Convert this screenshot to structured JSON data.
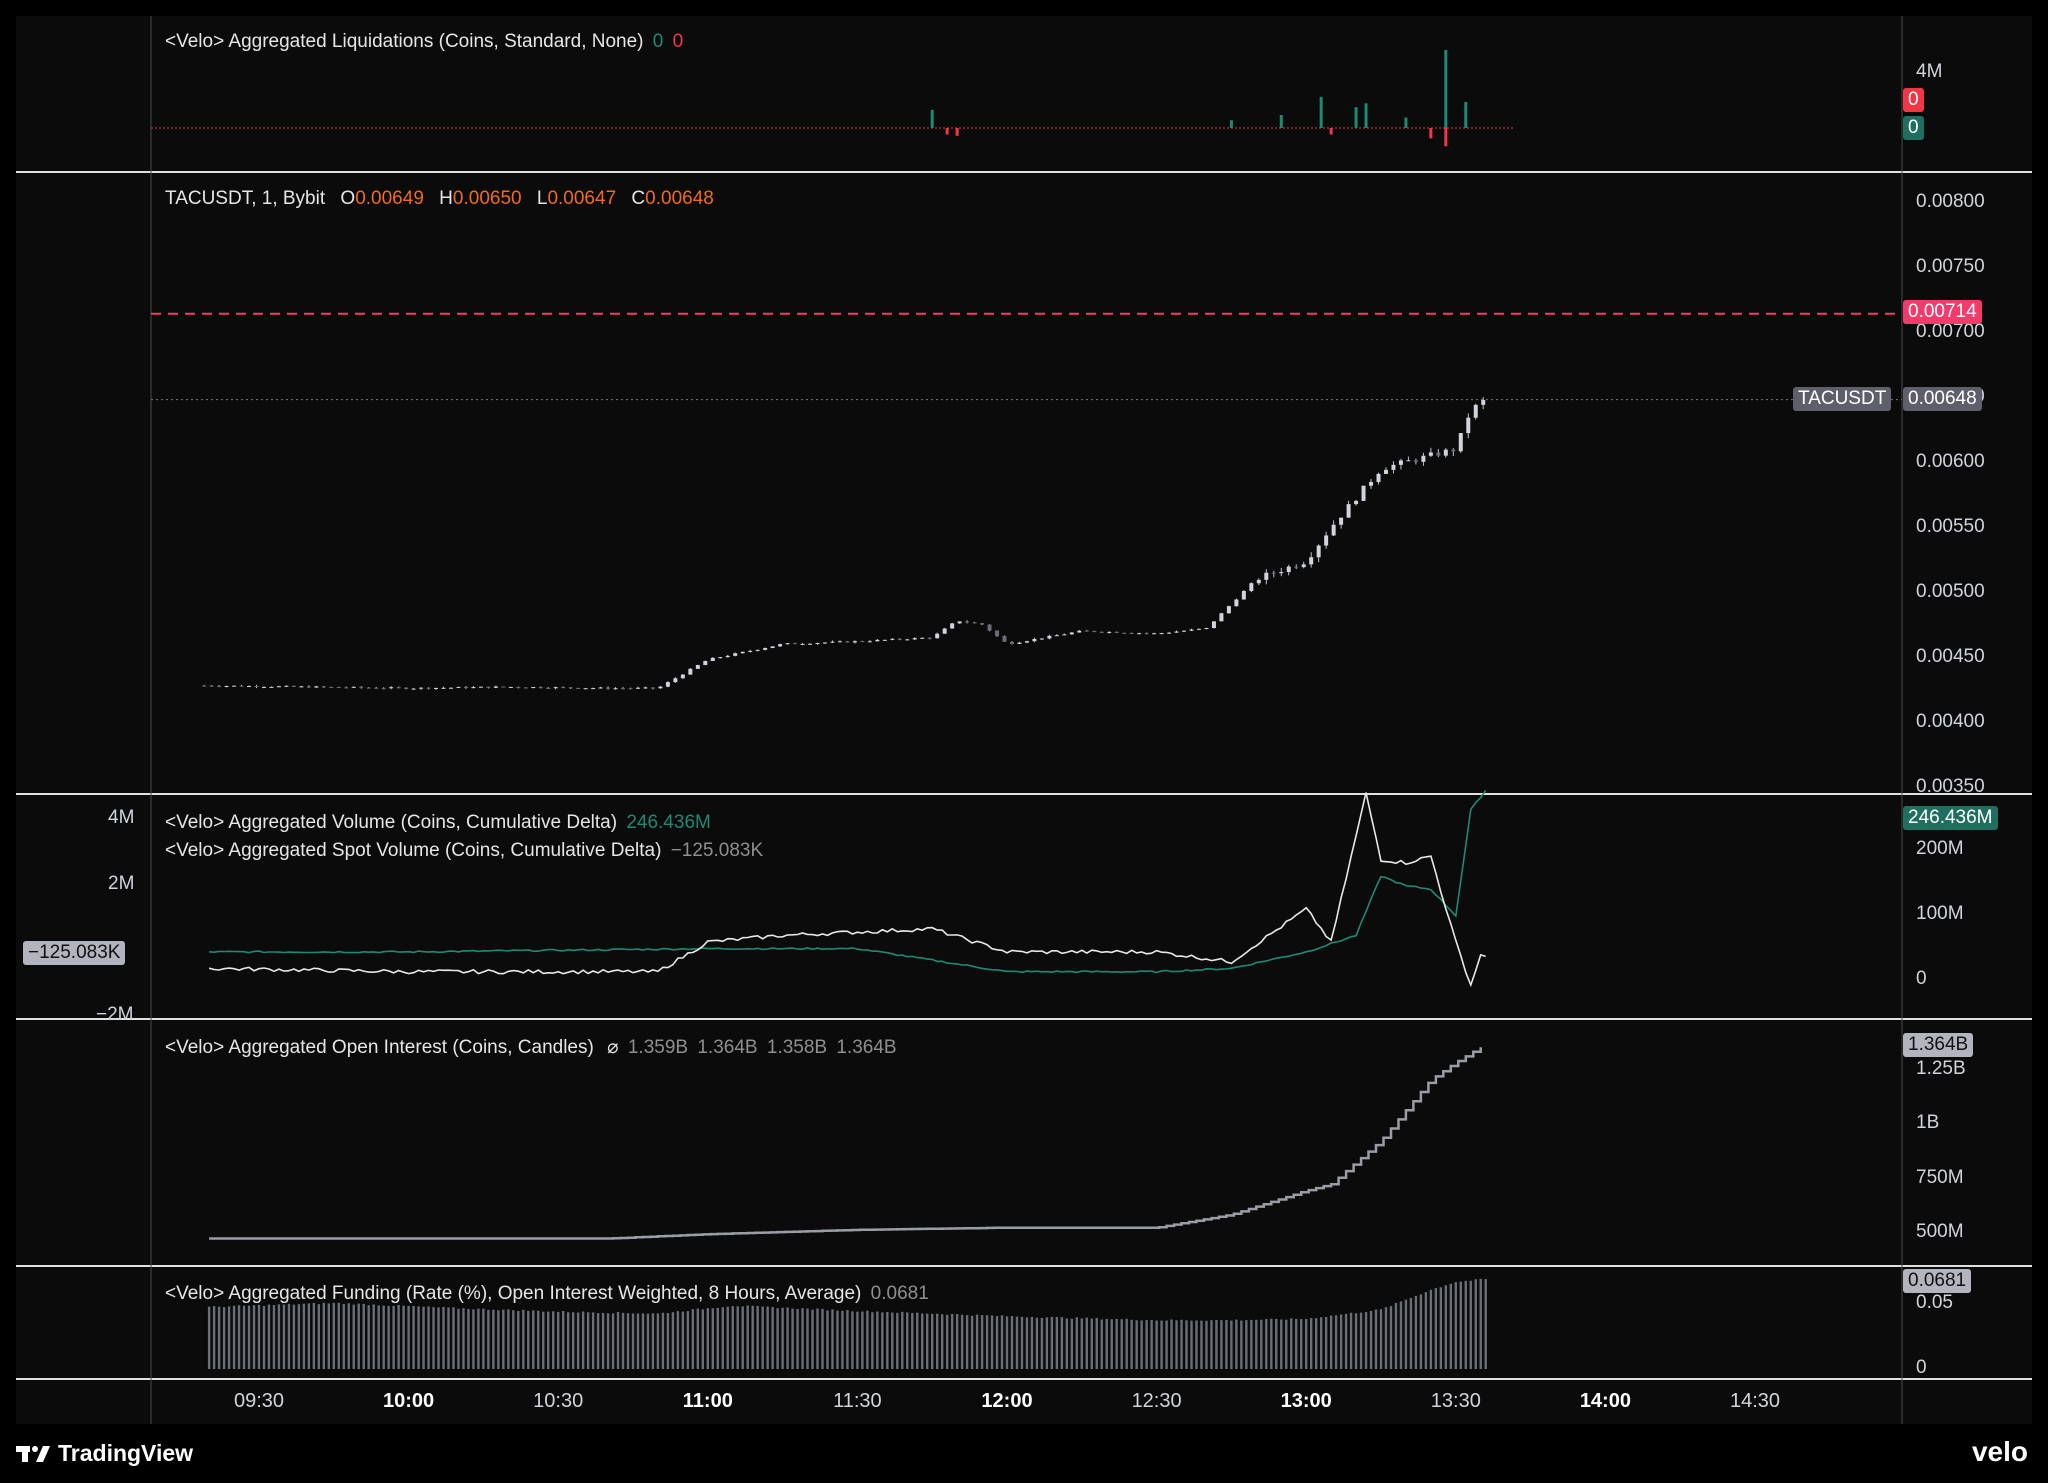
{
  "liq_pane": {
    "title": "<Velo> Aggregated Liquidations (Coins, Standard, None)",
    "val_long": "0",
    "val_short": "0",
    "axis": [
      "4M"
    ],
    "tag_red": "0",
    "tag_green": "0"
  },
  "price_pane": {
    "symbol": "TACUSDT, 1, Bybit",
    "o_label": "O",
    "o": "0.00649",
    "h_label": "H",
    "h": "0.00650",
    "l_label": "L",
    "l": "0.00647",
    "c_label": "C",
    "c": "0.00648",
    "axis": [
      "0.00800",
      "0.00750",
      "0.00700",
      "0.00650",
      "0.00600",
      "0.00550",
      "0.00500",
      "0.00450",
      "0.00400",
      "0.00350"
    ],
    "alert_tag": "0.00714",
    "last_symbol_tag": "TACUSDT",
    "last_price_tag": "0.00648"
  },
  "volume_pane": {
    "title1": "<Velo> Aggregated Volume (Coins, Cumulative Delta)",
    "value1": "246.436M",
    "title2": "<Velo> Aggregated Spot Volume (Coins, Cumulative Delta)",
    "value2": "−125.083K",
    "left_axis": [
      "4M",
      "2M",
      "−2M"
    ],
    "left_tag": "−125.083K",
    "right_axis": [
      "200M",
      "100M",
      "0"
    ],
    "right_tag": "246.436M"
  },
  "oi_pane": {
    "title": "<Velo> Aggregated Open Interest (Coins, Candles)",
    "symbol": "⌀",
    "o": "1.359B",
    "h": "1.364B",
    "l": "1.358B",
    "c": "1.364B",
    "axis": [
      "1.25B",
      "1B",
      "750M",
      "500M"
    ],
    "tag": "1.364B"
  },
  "funding_pane": {
    "title": "<Velo> Aggregated Funding (Rate (%), Open Interest Weighted, 8 Hours, Average)",
    "value": "0.0681",
    "axis": [
      "0.05",
      "0"
    ],
    "tag": "0.0681"
  },
  "time_axis": [
    {
      "t": "09:30",
      "bold": false
    },
    {
      "t": "10:00",
      "bold": true
    },
    {
      "t": "10:30",
      "bold": false
    },
    {
      "t": "11:00",
      "bold": true
    },
    {
      "t": "11:30",
      "bold": false
    },
    {
      "t": "12:00",
      "bold": true
    },
    {
      "t": "12:30",
      "bold": false
    },
    {
      "t": "13:00",
      "bold": true
    },
    {
      "t": "13:30",
      "bold": false
    },
    {
      "t": "14:00",
      "bold": true
    },
    {
      "t": "14:30",
      "bold": false
    }
  ],
  "footer": {
    "left_brand": "TradingView",
    "right_brand": "velo"
  },
  "colors": {
    "up": "#1f8a74",
    "down": "#f23645",
    "price": "#d1d4dc",
    "alert": "#f23b6b",
    "bg": "#000000"
  },
  "chart_data": [
    {
      "type": "candlestick",
      "title": "TACUSDT, 1, Bybit",
      "x_range": [
        "09:19",
        "13:36"
      ],
      "ylim": [
        0.0035,
        0.008
      ],
      "alert_level": 0.00714,
      "last_price": 0.00648,
      "x_time": [
        "09:20",
        "09:40",
        "10:00",
        "10:20",
        "10:40",
        "10:50",
        "11:00",
        "11:15",
        "11:30",
        "11:45",
        "11:50",
        "11:55",
        "12:00",
        "12:15",
        "12:30",
        "12:40",
        "12:50",
        "13:00",
        "13:05",
        "13:15",
        "13:25",
        "13:30",
        "13:33",
        "13:36"
      ],
      "close": [
        0.00428,
        0.00427,
        0.00426,
        0.00427,
        0.00426,
        0.00426,
        0.00448,
        0.0046,
        0.00462,
        0.00465,
        0.00478,
        0.00475,
        0.0046,
        0.0047,
        0.00468,
        0.00472,
        0.0051,
        0.00524,
        0.0055,
        0.00595,
        0.00605,
        0.0061,
        0.0064,
        0.00648
      ]
    },
    {
      "type": "bar",
      "title": "<Velo> Aggregated Liquidations (Coins, Standard, None)",
      "series": [
        {
          "name": "long",
          "x_time": [
            "11:45",
            "12:45",
            "12:55",
            "13:03",
            "13:10",
            "13:12",
            "13:20",
            "13:28",
            "13:32"
          ],
          "values": [
            1.4,
            0.6,
            1.0,
            2.4,
            1.6,
            1.9,
            0.8,
            6.0,
            2.0
          ]
        },
        {
          "name": "short",
          "x_time": [
            "11:48",
            "11:50",
            "13:05",
            "13:25",
            "13:28"
          ],
          "values": [
            -0.5,
            -0.6,
            -0.5,
            -0.8,
            -1.4
          ]
        }
      ]
    },
    {
      "type": "line",
      "title": "<Velo> Aggregated Volume (Coins, Cumulative Delta)",
      "series": [
        {
          "name": "<Velo> Aggregated Volume (Coins, Cumulative Delta)",
          "x_time": [
            "09:20",
            "10:00",
            "11:00",
            "11:30",
            "12:00",
            "12:30",
            "12:45",
            "13:00",
            "13:10",
            "13:15",
            "13:20",
            "13:25",
            "13:30",
            "13:33",
            "13:36"
          ],
          "values": [
            -0.3,
            -0.3,
            -0.2,
            -0.2,
            -0.9,
            -0.9,
            -0.8,
            -0.3,
            0.2,
            2.0,
            1.7,
            1.6,
            0.8,
            4.0,
            4.6
          ]
        },
        {
          "name": "<Velo> Aggregated Spot Volume (Coins, Cumulative Delta)",
          "x_time": [
            "09:20",
            "10:00",
            "10:50",
            "11:00",
            "11:15",
            "11:45",
            "12:00",
            "12:30",
            "12:45",
            "13:00",
            "13:05",
            "13:12",
            "13:15",
            "13:20",
            "13:25",
            "13:30",
            "13:33",
            "13:35",
            "13:36"
          ],
          "values": [
            -0.8,
            -0.9,
            -0.9,
            0.0,
            0.2,
            0.4,
            -0.3,
            -0.3,
            -0.6,
            1.0,
            0.0,
            4.5,
            2.5,
            2.4,
            2.6,
            0.0,
            -1.3,
            -0.4,
            -0.4
          ]
        }
      ]
    },
    {
      "type": "line",
      "title": "<Velo> Aggregated Open Interest (Coins, Candles)",
      "ylabel_unit": "B",
      "x_time": [
        "09:20",
        "10:00",
        "10:40",
        "11:00",
        "11:30",
        "12:00",
        "12:30",
        "12:45",
        "13:00",
        "13:05",
        "13:15",
        "13:25",
        "13:30",
        "13:36"
      ],
      "values": [
        0.47,
        0.47,
        0.47,
        0.49,
        0.51,
        0.52,
        0.52,
        0.58,
        0.69,
        0.72,
        0.92,
        1.2,
        1.28,
        1.364
      ]
    },
    {
      "type": "bar",
      "title": "<Velo> Aggregated Funding (Rate (%), Open Interest Weighted, 8 Hours, Average)",
      "x_time": [
        "09:20",
        "09:45",
        "10:10",
        "10:30",
        "10:50",
        "11:05",
        "11:30",
        "12:00",
        "12:30",
        "12:45",
        "13:00",
        "13:15",
        "13:25",
        "13:30",
        "13:36"
      ],
      "values": [
        0.047,
        0.05,
        0.046,
        0.0435,
        0.042,
        0.048,
        0.044,
        0.04,
        0.037,
        0.037,
        0.038,
        0.045,
        0.06,
        0.066,
        0.0681
      ]
    }
  ]
}
